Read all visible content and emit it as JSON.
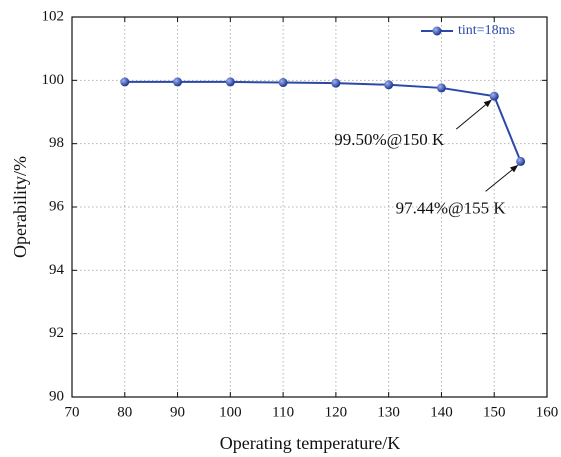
{
  "chart_data": {
    "type": "line",
    "x_label": "Operating temperature/K",
    "y_label": "Operability/%",
    "x": [
      80,
      90,
      100,
      110,
      120,
      130,
      140,
      150,
      155
    ],
    "series": [
      {
        "name": "tint=18ms",
        "color": "#2b4aa8",
        "values": [
          99.95,
          99.95,
          99.95,
          99.93,
          99.91,
          99.86,
          99.76,
          99.5,
          97.44
        ]
      }
    ],
    "xlim": [
      70,
      160
    ],
    "xticks": [
      70,
      80,
      90,
      100,
      110,
      120,
      130,
      140,
      150,
      160
    ],
    "ylim": [
      90,
      102
    ],
    "yticks": [
      90,
      92,
      94,
      96,
      98,
      100,
      102
    ],
    "grid": true,
    "legend": "upper right",
    "annotations": [
      "99.50%@150 K",
      "97.44%@155 K"
    ]
  }
}
